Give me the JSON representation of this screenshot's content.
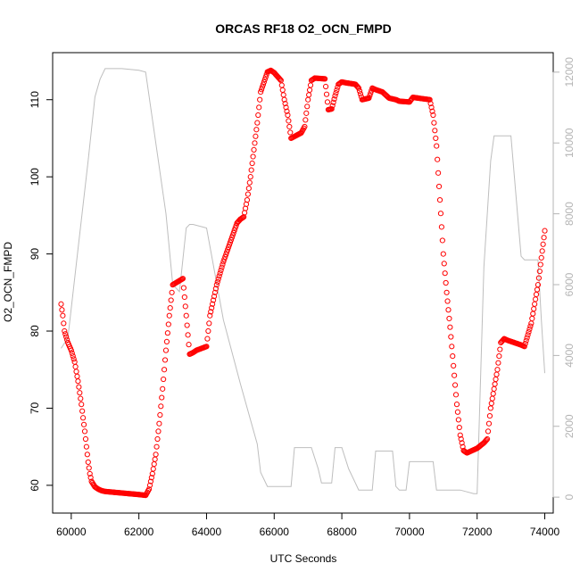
{
  "chart_data": {
    "type": "scatter",
    "title": "ORCAS RF18 O2_OCN_FMPD",
    "xlabel": "UTC Seconds",
    "ylabel": "O2_OCN_FMPD",
    "xlim": [
      59450,
      74250
    ],
    "ylim": [
      56.4,
      116.1
    ],
    "y2lim": [
      -450,
      12550
    ],
    "x_ticks": [
      60000,
      62000,
      64000,
      66000,
      68000,
      70000,
      72000,
      74000
    ],
    "y_ticks": [
      60,
      70,
      80,
      90,
      100,
      110
    ],
    "y2_ticks": [
      0,
      2000,
      4000,
      6000,
      8000,
      10000,
      12000
    ],
    "grid": false,
    "colors": {
      "points": "#ff0000",
      "secondary_line": "#bebebe",
      "secondary_axis": "#b4b4b4"
    },
    "series": [
      {
        "marker": "open-circle",
        "axis": "left",
        "x": [
          59700,
          59750,
          59800,
          59900,
          60000,
          60100,
          60200,
          60300,
          60400,
          60500,
          60550,
          60600,
          60700,
          60800,
          60900,
          61000,
          61500,
          62000,
          62200,
          62300,
          62400,
          62500,
          62600,
          62700,
          62800,
          62900,
          63000,
          63300,
          63400,
          63500,
          63600,
          63700,
          64000,
          64100,
          64300,
          64500,
          64700,
          64900,
          65000,
          65100,
          65200,
          65300,
          65400,
          65500,
          65600,
          65800,
          65900,
          66000,
          66200,
          66300,
          66400,
          66500,
          66800,
          66900,
          67000,
          67100,
          67200,
          67500,
          67600,
          67700,
          67800,
          67900,
          68000,
          68100,
          68400,
          68500,
          68600,
          68800,
          68900,
          69000,
          69200,
          69400,
          69600,
          69700,
          70000,
          70100,
          70600,
          70700,
          70800,
          70900,
          71000,
          71100,
          71200,
          71300,
          71400,
          71500,
          71600,
          71700,
          72000,
          72200,
          72300,
          72400,
          72600,
          72700,
          72800,
          72900,
          73300,
          73400,
          73500,
          73600,
          73700,
          73800,
          73900,
          74000
        ],
        "y": [
          83.5,
          82,
          80,
          78.5,
          77.5,
          76,
          73.5,
          70.5,
          67,
          63,
          61.5,
          60.5,
          59.8,
          59.5,
          59.3,
          59.2,
          59,
          58.8,
          58.7,
          59.5,
          61.5,
          64,
          68,
          72.5,
          77.5,
          82,
          86,
          86.8,
          82,
          77,
          77.2,
          77.5,
          78,
          82,
          86,
          89,
          91.5,
          94,
          94.5,
          94.8,
          97,
          100,
          103.5,
          107,
          111,
          113.6,
          113.8,
          113.5,
          112.5,
          110,
          108,
          105,
          105.7,
          106.5,
          110,
          112.5,
          112.8,
          112.7,
          108.7,
          108.8,
          110.5,
          112,
          112.3,
          112.2,
          112,
          111.5,
          110,
          110.2,
          111.5,
          111.3,
          111,
          110.2,
          110,
          109.8,
          109.7,
          110.3,
          110,
          108,
          104,
          97,
          90,
          85,
          80.5,
          75.5,
          70.5,
          66.5,
          64.5,
          64.2,
          64.8,
          65.5,
          66,
          70,
          75,
          78.5,
          79,
          78.8,
          78.2,
          78,
          79.5,
          81,
          83.5,
          86,
          89.5,
          93
        ]
      },
      {
        "type": "line",
        "axis": "right",
        "x": [
          59700,
          59900,
          60200,
          60500,
          60700,
          60850,
          61000,
          61500,
          62000,
          62200,
          62500,
          62800,
          63000,
          63200,
          63400,
          63500,
          63600,
          64000,
          64500,
          65000,
          65500,
          65600,
          65800,
          66000,
          66100,
          66300,
          66400,
          66500,
          66600,
          66700,
          66800,
          66900,
          67000,
          67100,
          67300,
          67400,
          67500,
          67600,
          67700,
          67800,
          67900,
          68000,
          68200,
          68400,
          68500,
          68600,
          68700,
          68800,
          68900,
          69000,
          69100,
          69200,
          69300,
          69400,
          69500,
          69600,
          69700,
          69800,
          69900,
          70000,
          70100,
          70200,
          70300,
          70500,
          70600,
          70700,
          70800,
          71000,
          71200,
          71500,
          71700,
          71900,
          72000,
          72200,
          72400,
          72500,
          72600,
          72700,
          72800,
          73000,
          73300,
          73400,
          73500,
          73600,
          73700,
          73800,
          73900,
          74000
        ],
        "y": [
          4200,
          4500,
          7000,
          9500,
          11300,
          11800,
          12100,
          12100,
          12050,
          12000,
          10000,
          8000,
          6000,
          5800,
          7600,
          7700,
          7700,
          7600,
          5000,
          3200,
          1500,
          700,
          300,
          300,
          300,
          300,
          300,
          300,
          1400,
          1400,
          1400,
          1400,
          1400,
          1400,
          800,
          400,
          400,
          400,
          400,
          1400,
          1400,
          1400,
          800,
          400,
          200,
          200,
          200,
          200,
          200,
          1300,
          1300,
          1300,
          1300,
          1300,
          1300,
          300,
          200,
          200,
          200,
          1000,
          1000,
          1000,
          1000,
          1000,
          1000,
          1000,
          200,
          200,
          200,
          200,
          150,
          100,
          100,
          6500,
          9500,
          10200,
          10200,
          10200,
          10200,
          10200,
          6800,
          6700,
          6700,
          6700,
          6700,
          6700,
          5000,
          3500
        ]
      }
    ]
  }
}
